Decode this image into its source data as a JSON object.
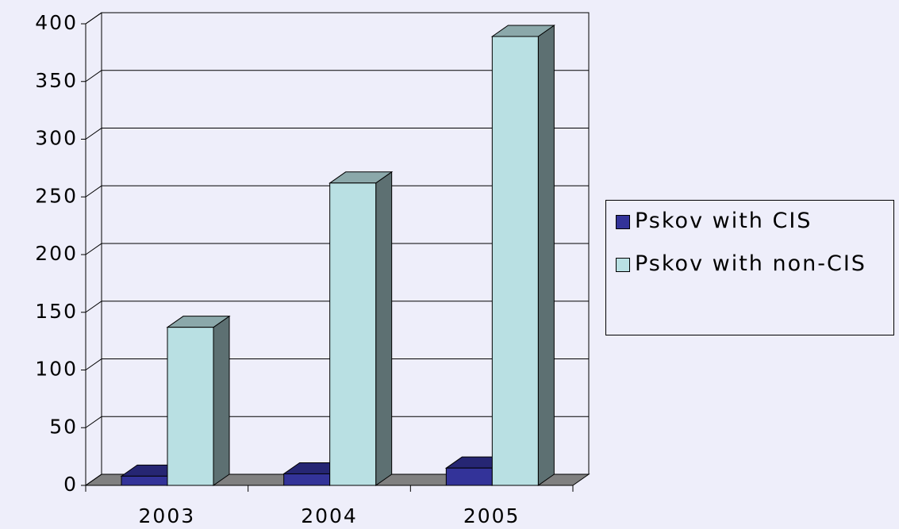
{
  "chart_data": {
    "type": "bar3d",
    "categories": [
      "2003",
      "2004",
      "2005"
    ],
    "series": [
      {
        "name": "Pskov with CIS",
        "color": "#333399",
        "values": [
          8,
          10,
          15
        ]
      },
      {
        "name": "Pskov with non-CIS",
        "color": "#b9e0e3",
        "values": [
          137,
          262,
          389
        ]
      }
    ],
    "ylim": [
      0,
      400
    ],
    "yticks": [
      0,
      50,
      100,
      150,
      200,
      250,
      300,
      350,
      400
    ],
    "grid": true
  }
}
